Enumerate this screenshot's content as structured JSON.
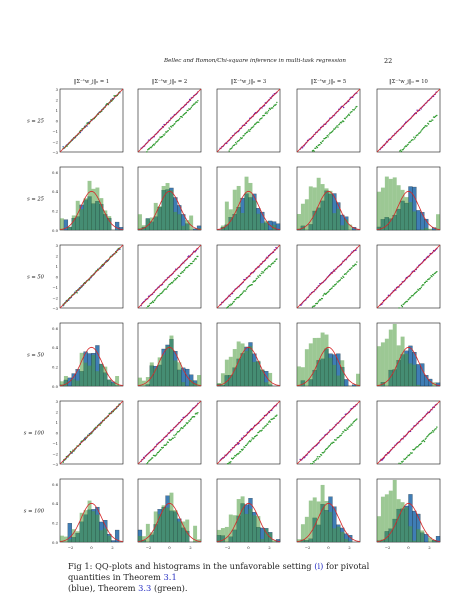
{
  "header": {
    "running_title": "Bellec and Romon/Chi-square inference in multi-task regression",
    "page_number": "22"
  },
  "figure": {
    "column_titles": [
      "‖Σ⁻¹w_j‖₀ = 1",
      "‖Σ⁻¹w_j‖₀ = 2",
      "‖Σ⁻¹w_j‖₀ = 3",
      "‖Σ⁻¹w_j‖₀ = 5",
      "‖Σ⁻¹w_j‖₀ = 10"
    ],
    "row_labels": [
      "s = 25",
      "s = 25",
      "s = 50",
      "s = 50",
      "s = 100",
      "s = 100"
    ],
    "qq_ticks": [
      "3",
      "2",
      "1",
      "0",
      "−1",
      "−2",
      "−3"
    ],
    "hist_ticks": [
      "0.6",
      "0.4",
      "0.2",
      "0.0"
    ],
    "x_ticks": [
      "−2",
      "0",
      "2"
    ],
    "colors": {
      "blue": "#1f5fa8",
      "purple": "#6a1fb5",
      "green": "#2f9a2f",
      "red": "#d62728",
      "hist_blue": "#2b70ad",
      "hist_green": "#4a9a3c"
    }
  },
  "chart_data": [
    {
      "type": "scatter",
      "panel": "qq",
      "xlabel": "",
      "ylabel": "",
      "ylim": [
        -3,
        3
      ],
      "rows": [
        "s = 25",
        "s = 50",
        "s = 100"
      ],
      "columns": [
        1,
        2,
        3,
        5,
        10
      ],
      "series": [
        {
          "name": "Theorem 3.1",
          "color": "blue",
          "green_offset_by_column": [
            0,
            0,
            0,
            0,
            0
          ]
        },
        {
          "name": "Theorem 3.3",
          "color": "green",
          "green_offset_by_column": [
            0,
            -0.8,
            -1.0,
            -1.4,
            -2.2
          ]
        }
      ],
      "reference_line": "y = x"
    },
    {
      "type": "bar",
      "panel": "histogram",
      "ylim": [
        0,
        0.6
      ],
      "x_range": [
        -3,
        3
      ],
      "rows": [
        "s = 25",
        "s = 50",
        "s = 100"
      ],
      "columns": [
        1,
        2,
        3,
        5,
        10
      ],
      "series": [
        {
          "name": "Theorem 3.1",
          "color": "hist_blue",
          "distribution": "N(0,1)"
        },
        {
          "name": "Theorem 3.3",
          "color": "hist_green",
          "distribution": "shifted left, increasing with column"
        }
      ],
      "density_curve": "standard normal"
    }
  ],
  "caption": {
    "prefix": "Fig 1: QQ-plots and histograms in the unfavorable setting ",
    "ref_setting": "(i)",
    "middle": " for pivotal quantities in Theorem ",
    "ref_thm1": "3.1",
    "line2_start": "(blue), Theorem ",
    "ref_thm2": "3.3",
    "suffix": " (green)."
  }
}
